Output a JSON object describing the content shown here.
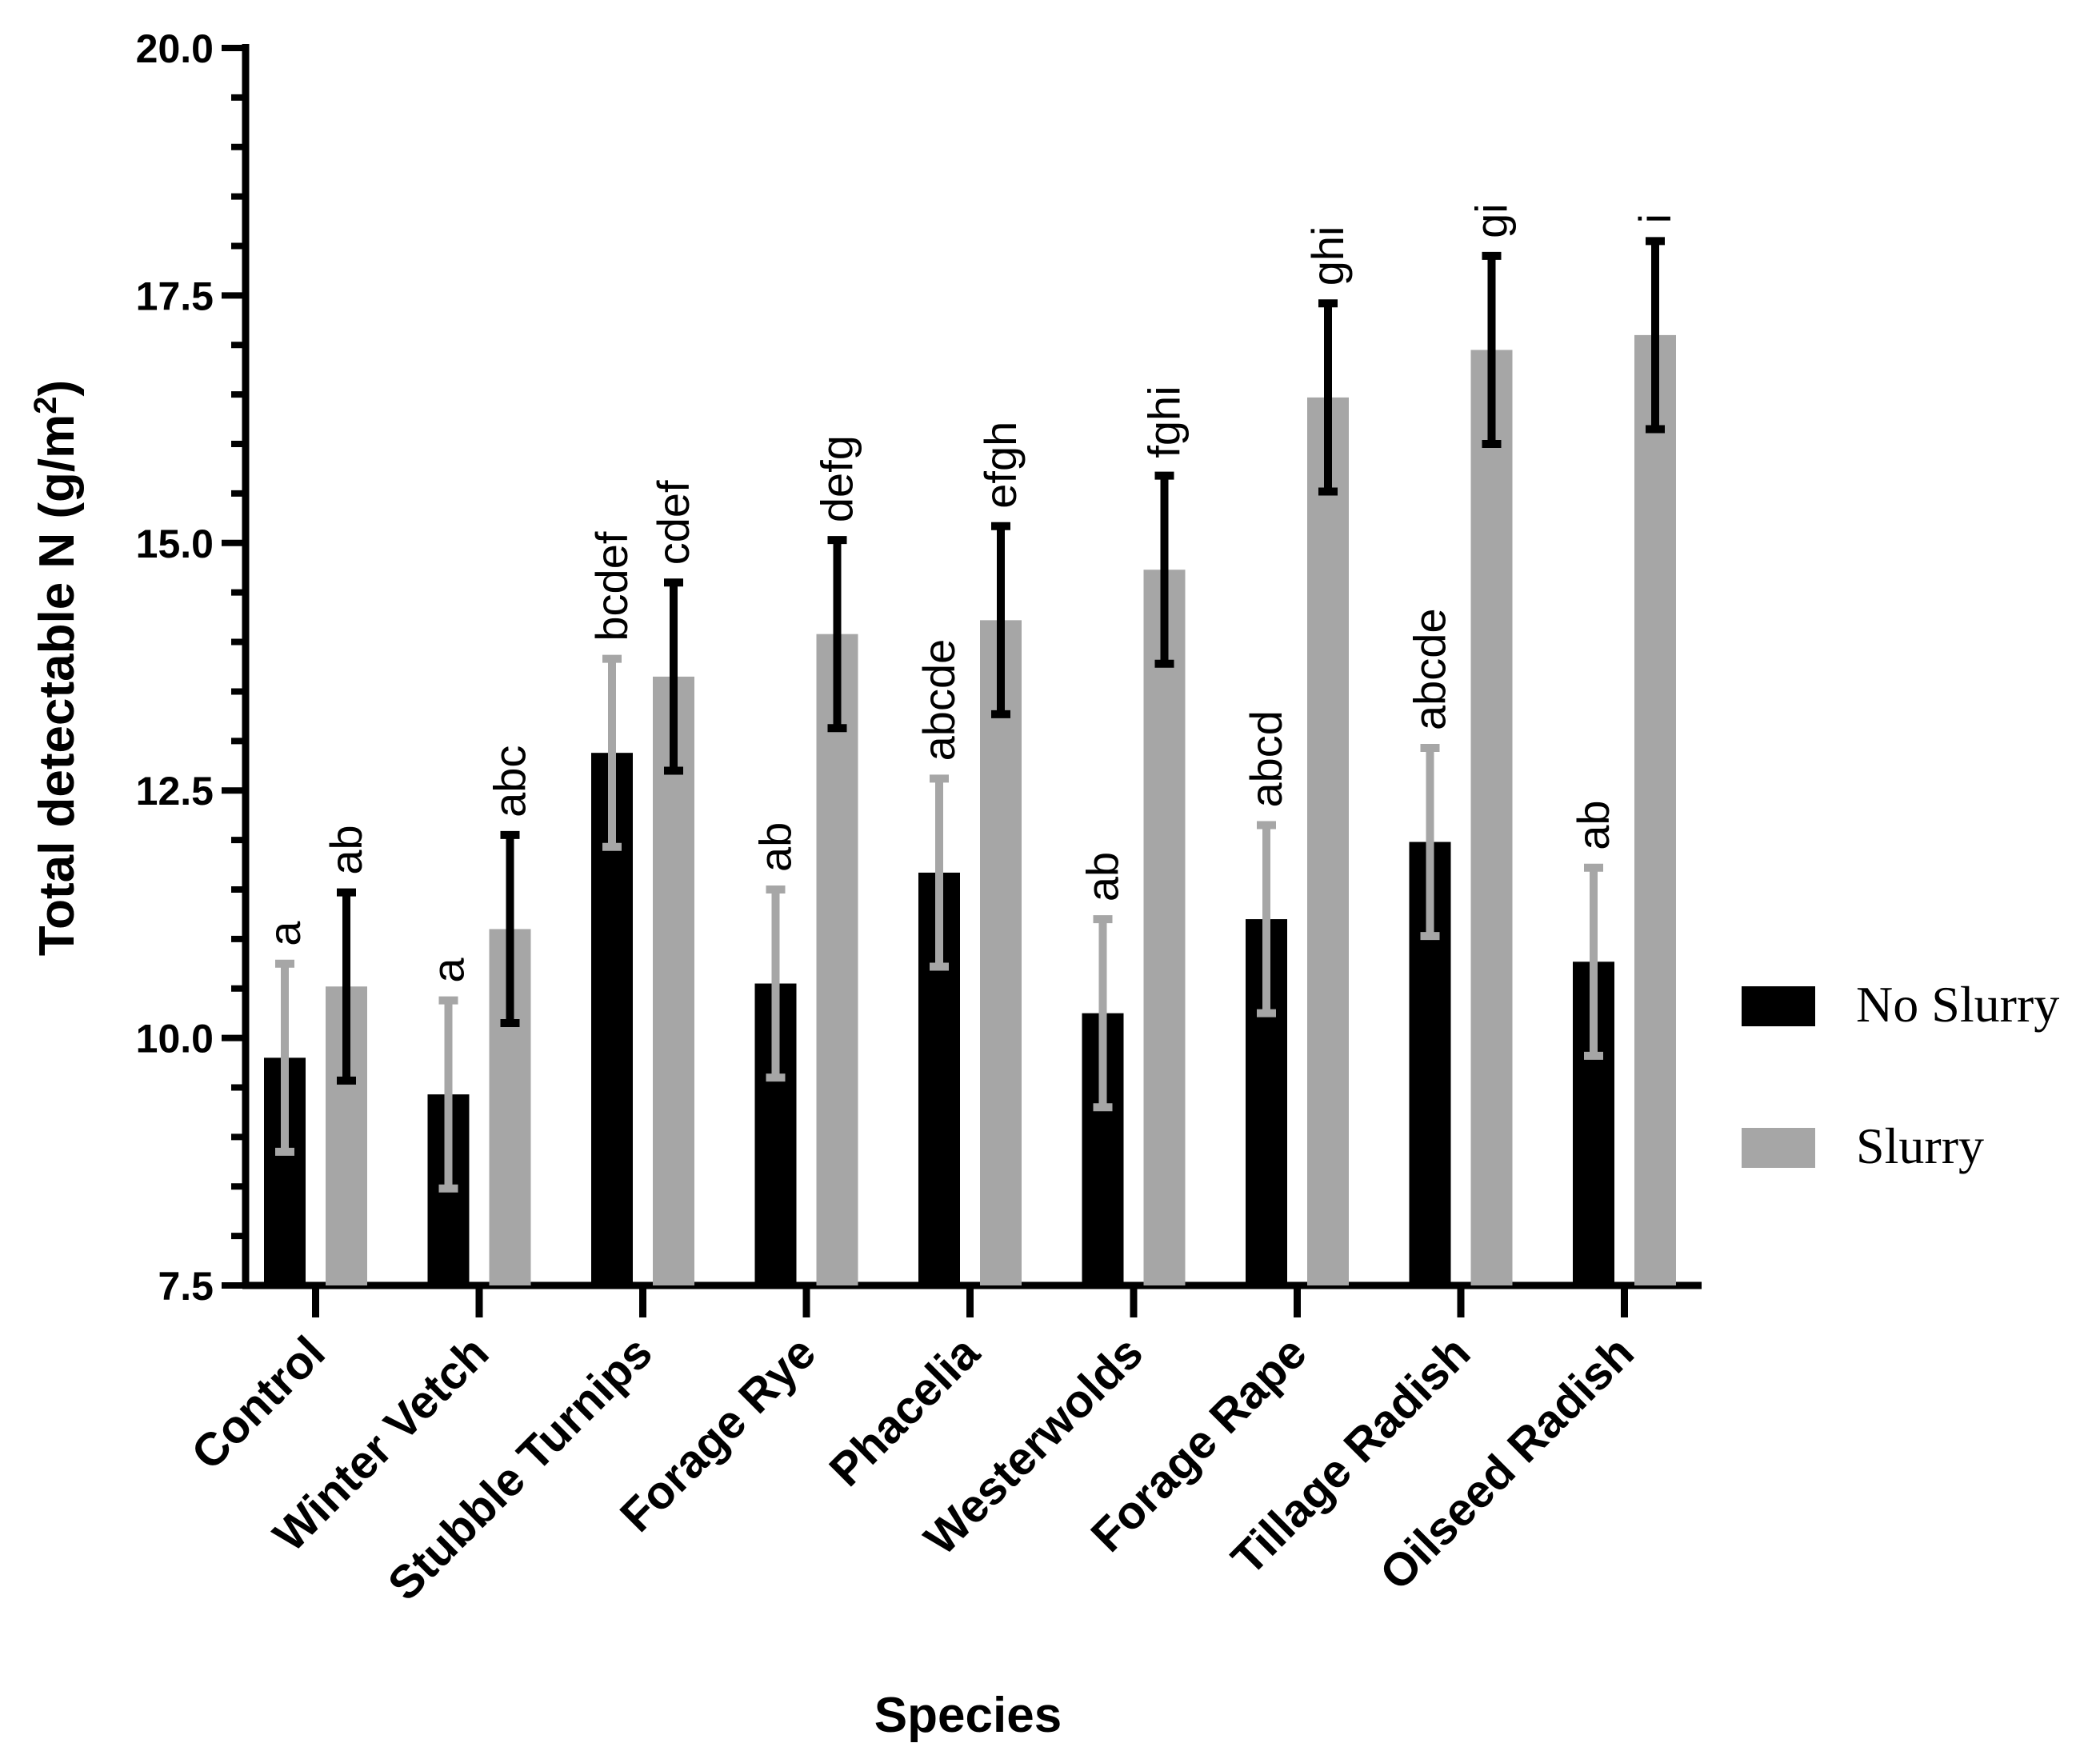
{
  "chart_data": {
    "type": "bar",
    "xlabel": "Species",
    "ylabel": "Total detectable N (g/m",
    "ylabel_sup": "2",
    "ylabel_end": ")",
    "ylim": [
      7.5,
      20.0
    ],
    "yticks": [
      "7.5",
      "10.0",
      "12.5",
      "15.0",
      "17.5",
      "20.0"
    ],
    "legend_position": "right",
    "categories": [
      "Control",
      "Winter Vetch",
      "Stubble Turnips",
      "Forage Rye",
      "Phacelia",
      "Westerwolds",
      "Forage Rape",
      "Tillage Radish",
      "Oilseed Radish"
    ],
    "series": [
      {
        "name": "No Slurry",
        "color": "#000000",
        "error_color": "#a6a6a6",
        "values": [
          9.8,
          9.43,
          12.88,
          10.55,
          11.67,
          10.25,
          11.2,
          11.98,
          10.77
        ],
        "errors": [
          0.95,
          0.95,
          0.95,
          0.95,
          0.95,
          0.95,
          0.95,
          0.95,
          0.95
        ],
        "letters": [
          "a",
          "a",
          "bcdef",
          "ab",
          "abcde",
          "ab",
          "abcd",
          "abcde",
          "ab"
        ]
      },
      {
        "name": "Slurry",
        "color": "#a6a6a6",
        "error_color": "#000000",
        "values": [
          10.52,
          11.1,
          13.65,
          14.08,
          14.22,
          14.73,
          16.47,
          16.95,
          17.1
        ],
        "errors": [
          0.95,
          0.95,
          0.95,
          0.95,
          0.95,
          0.95,
          0.95,
          0.95,
          0.95
        ],
        "letters": [
          "ab",
          "abc",
          "cdef",
          "defg",
          "efgh",
          "fghi",
          "ghi",
          "gi",
          "i"
        ]
      }
    ]
  }
}
